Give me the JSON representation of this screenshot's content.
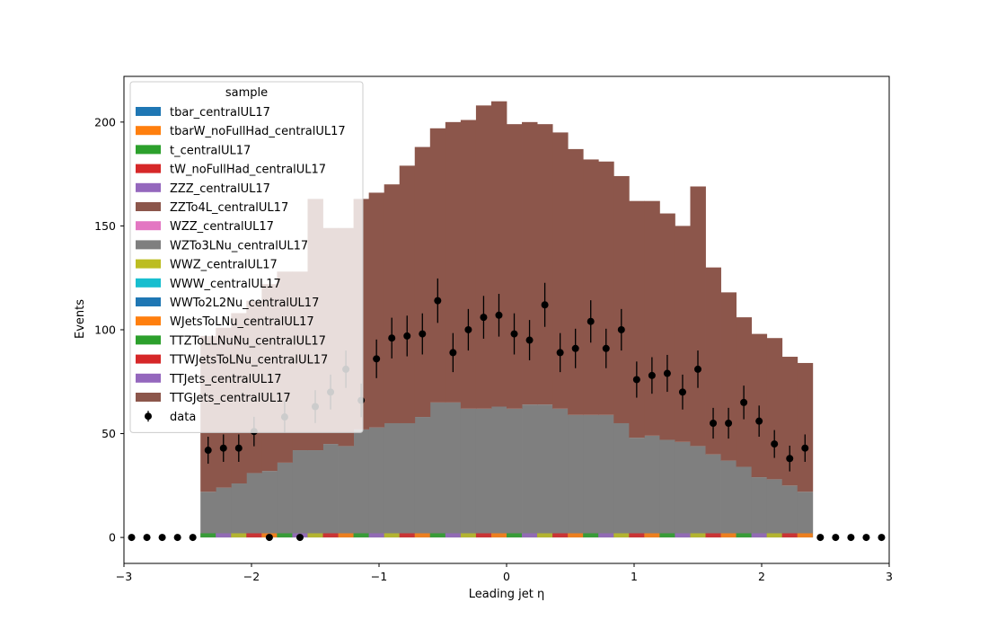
{
  "chart_data": {
    "type": "bar",
    "stacked": true,
    "xlabel": "Leading jet  η",
    "ylabel": "Events",
    "xlim": [
      -3,
      3
    ],
    "ylim": [
      -12.5,
      222
    ],
    "x_ticks": [
      -3,
      -2,
      -1,
      0,
      1,
      2,
      3
    ],
    "x_tick_labels": [
      "−3",
      "−2",
      "−1",
      "0",
      "1",
      "2",
      "3"
    ],
    "y_ticks": [
      0,
      50,
      100,
      150,
      200
    ],
    "y_tick_labels": [
      "0",
      "50",
      "100",
      "150",
      "200"
    ],
    "grid": false,
    "legend_title": "sample",
    "legend_position": "upper-left",
    "bin_edges": [
      -2.4,
      -2.28,
      -2.16,
      -2.04,
      -1.92,
      -1.8,
      -1.68,
      -1.56,
      -1.44,
      -1.32,
      -1.2,
      -1.08,
      -0.96,
      -0.84,
      -0.72,
      -0.6,
      -0.48,
      -0.36,
      -0.24,
      -0.12,
      0.0,
      0.12,
      0.24,
      0.36,
      0.48,
      0.6,
      0.72,
      0.84,
      0.96,
      1.08,
      1.2,
      1.32,
      1.44,
      1.56,
      1.68,
      1.8,
      1.92,
      2.04,
      2.16,
      2.28,
      2.4
    ],
    "series": [
      {
        "name": "tbar_centralUL17",
        "color": "#1f77b4",
        "values": []
      },
      {
        "name": "tbarW_noFullHad_centralUL17",
        "color": "#ff7f0e",
        "values": []
      },
      {
        "name": "t_centralUL17",
        "color": "#2ca02c",
        "values": []
      },
      {
        "name": "tW_noFullHad_centralUL17",
        "color": "#d62728",
        "values": []
      },
      {
        "name": "ZZZ_centralUL17",
        "color": "#9467bd",
        "values": []
      },
      {
        "name": "ZZTo4L_centralUL17",
        "color": "#8c564b",
        "values": []
      },
      {
        "name": "WZZ_centralUL17",
        "color": "#e377c2",
        "values": []
      },
      {
        "name": "WZTo3LNu_centralUL17",
        "color": "#7f7f7f",
        "values": [
          22,
          24,
          26,
          31,
          32,
          36,
          42,
          42,
          45,
          44,
          52,
          53,
          55,
          55,
          58,
          65,
          65,
          62,
          62,
          63,
          62,
          64,
          64,
          62,
          59,
          59,
          59,
          55,
          48,
          49,
          47,
          46,
          44,
          40,
          37,
          34,
          29,
          28,
          25,
          22
        ]
      },
      {
        "name": "WWZ_centralUL17",
        "color": "#bcbd22",
        "values": []
      },
      {
        "name": "WWW_centralUL17",
        "color": "#17becf",
        "values": []
      },
      {
        "name": "WWTo2L2Nu_centralUL17",
        "color": "#1f77b4",
        "values": []
      },
      {
        "name": "WJetsToLNu_centralUL17",
        "color": "#ff7f0e",
        "values": []
      },
      {
        "name": "TTZToLLNuNu_centralUL17",
        "color": "#2ca02c",
        "values": []
      },
      {
        "name": "TTWJetsToLNu_centralUL17",
        "color": "#d62728",
        "values": []
      },
      {
        "name": "TTJets_centralUL17",
        "color": "#9467bd",
        "values": []
      },
      {
        "name": "TTGJets_centralUL17",
        "color": "#8c564b",
        "values": [
          75,
          77,
          82,
          83,
          90,
          92,
          86,
          121,
          104,
          105,
          111,
          113,
          115,
          124,
          130,
          132,
          135,
          139,
          146,
          147,
          137,
          136,
          135,
          133,
          128,
          123,
          122,
          119,
          114,
          113,
          109,
          104,
          125,
          90,
          81,
          72,
          69,
          68,
          62,
          62
        ]
      },
      {
        "name": "data",
        "color": "#000000",
        "values": []
      }
    ],
    "small_components": {
      "colors": [
        "#2ca02c",
        "#9467bd",
        "#bcbd22",
        "#d62728",
        "#ff7f0e"
      ],
      "approx_total": 2
    },
    "data_points": {
      "x": [
        -2.94,
        -2.82,
        -2.7,
        -2.58,
        -2.46,
        -2.34,
        -2.22,
        -2.1,
        -1.98,
        -1.86,
        -1.74,
        -1.62,
        -1.5,
        -1.38,
        -1.26,
        -1.14,
        -1.02,
        -0.9,
        -0.78,
        -0.66,
        -0.54,
        -0.42,
        -0.3,
        -0.18,
        -0.06,
        0.06,
        0.18,
        0.3,
        0.42,
        0.54,
        0.66,
        0.78,
        0.9,
        1.02,
        1.14,
        1.26,
        1.38,
        1.5,
        1.62,
        1.74,
        1.86,
        1.98,
        2.1,
        2.22,
        2.34,
        2.46,
        2.58,
        2.7,
        2.82,
        2.94
      ],
      "y": [
        0,
        0,
        0,
        0,
        0,
        42,
        43,
        43,
        51,
        0,
        58,
        0,
        63,
        70,
        81,
        66,
        86,
        96,
        97,
        98,
        114,
        89,
        100,
        106,
        107,
        98,
        95,
        112,
        89,
        91,
        104,
        91,
        100,
        76,
        78,
        79,
        70,
        81,
        55,
        55,
        65,
        56,
        45,
        38,
        43,
        0,
        0,
        0,
        0,
        0
      ],
      "err": [
        0,
        0,
        0,
        0,
        0,
        6.5,
        6.6,
        6.6,
        7.1,
        0,
        7.6,
        0,
        7.9,
        8.4,
        9.0,
        8.1,
        9.3,
        9.8,
        9.8,
        9.9,
        10.7,
        9.4,
        10.0,
        10.3,
        10.3,
        9.9,
        9.7,
        10.6,
        9.4,
        9.5,
        10.2,
        9.5,
        10.0,
        8.7,
        8.8,
        8.9,
        8.4,
        9.0,
        7.4,
        7.4,
        8.1,
        7.5,
        6.7,
        6.2,
        6.6,
        0,
        0,
        0,
        0,
        0
      ]
    }
  }
}
